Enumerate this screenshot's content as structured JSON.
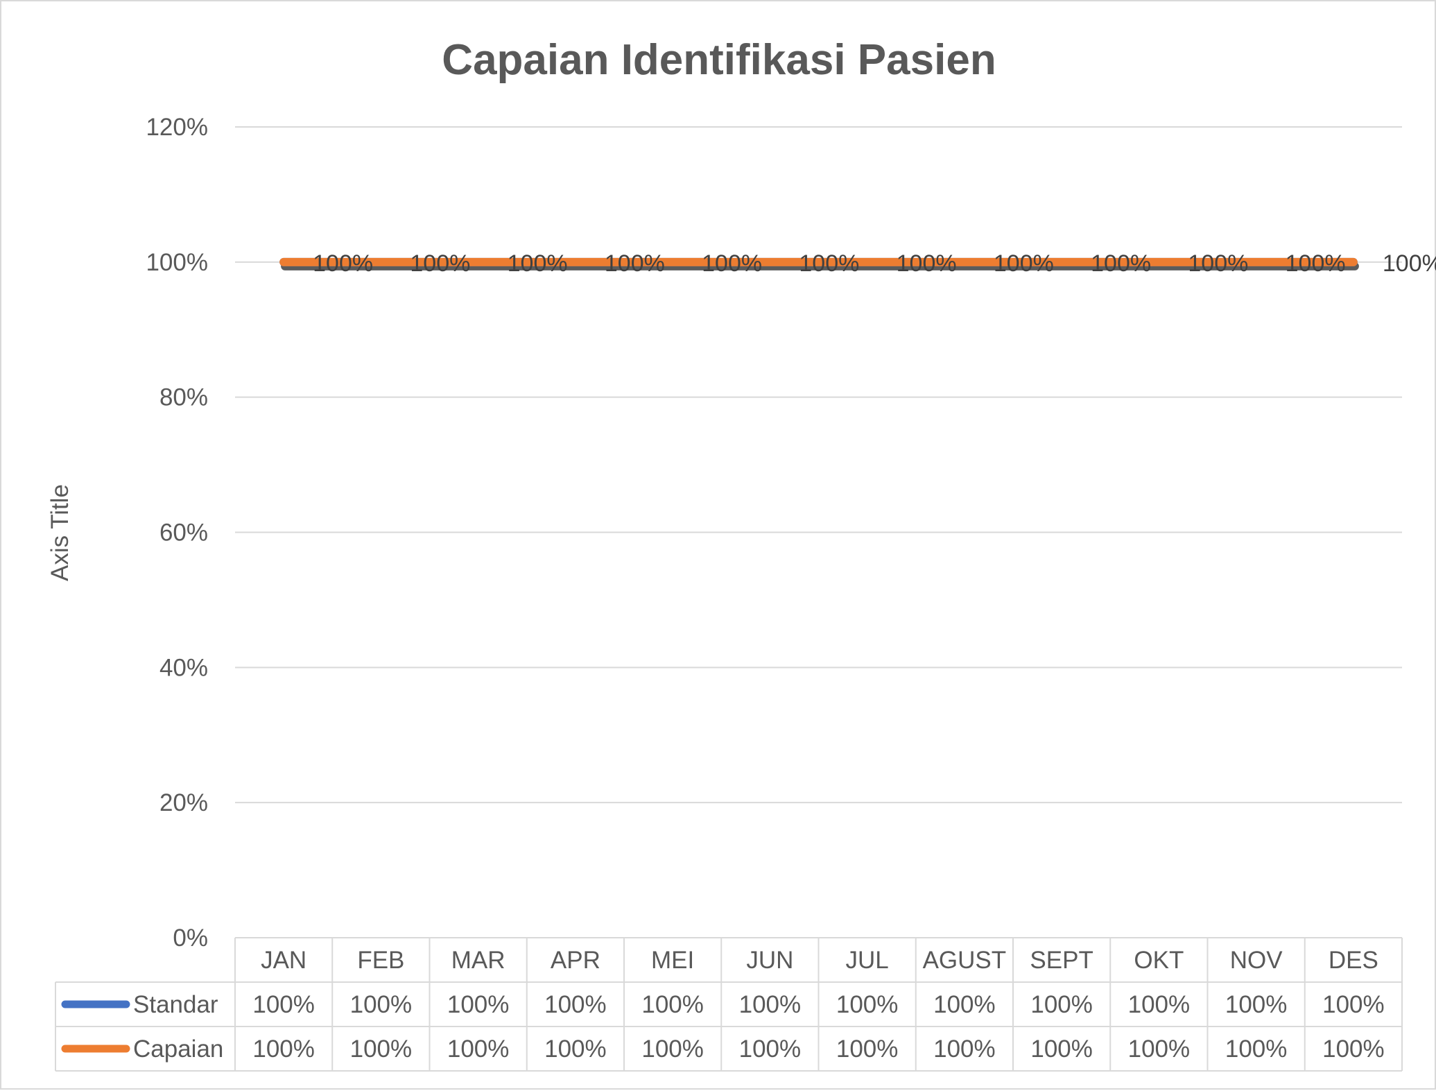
{
  "chart_data": {
    "type": "line",
    "title": "Capaian Identifikasi Pasien",
    "xlabel": "",
    "ylabel": "Axis Title",
    "categories": [
      "JAN",
      "FEB",
      "MAR",
      "APR",
      "MEI",
      "JUN",
      "JUL",
      "AGUST",
      "SEPT",
      "OKT",
      "NOV",
      "DES"
    ],
    "yticks": [
      "0%",
      "20%",
      "40%",
      "60%",
      "80%",
      "100%",
      "120%"
    ],
    "ylim": [
      0,
      1.2
    ],
    "grid": true,
    "legend": "data-table",
    "series": [
      {
        "name": "Standar",
        "color": "#4472c4",
        "values": [
          1,
          1,
          1,
          1,
          1,
          1,
          1,
          1,
          1,
          1,
          1,
          1
        ],
        "labels": [
          "100%",
          "100%",
          "100%",
          "100%",
          "100%",
          "100%",
          "100%",
          "100%",
          "100%",
          "100%",
          "100%",
          "100%"
        ]
      },
      {
        "name": "Capaian",
        "color": "#ed7d31",
        "values": [
          1,
          1,
          1,
          1,
          1,
          1,
          1,
          1,
          1,
          1,
          1,
          1
        ],
        "labels": [
          "100%",
          "100%",
          "100%",
          "100%",
          "100%",
          "100%",
          "100%",
          "100%",
          "100%",
          "100%",
          "100%",
          "100%"
        ]
      }
    ],
    "data_labels": [
      "100%",
      "100%",
      "100%",
      "100%",
      "100%",
      "100%",
      "100%",
      "100%",
      "100%",
      "100%",
      "100%",
      "100%"
    ]
  }
}
